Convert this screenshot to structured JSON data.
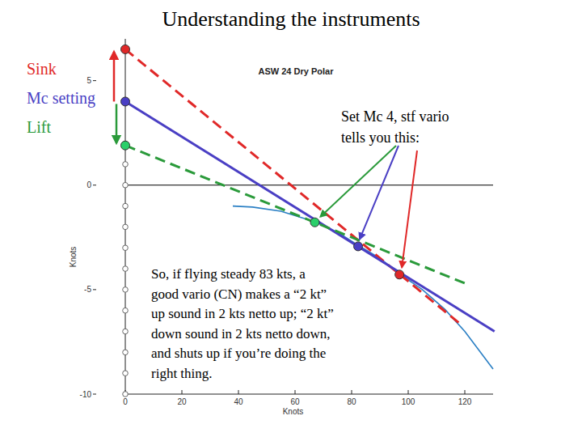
{
  "page": {
    "title": "Understanding the instruments",
    "labels": [
      {
        "text": "Sink",
        "color": "#e02828"
      },
      {
        "text": "Mc setting",
        "color": "#4a3fc4"
      },
      {
        "text": "Lift",
        "color": "#2a9a3a"
      }
    ],
    "note": [
      "Set Mc 4, stf vario",
      "tells you this:"
    ],
    "paragraph": [
      "So, if flying steady 83 kts, a",
      "good vario (CN) makes a “2 kt”",
      "up sound in 2 kts netto up; “2 kt”",
      "down sound in 2 kts netto down,",
      "and shuts up if you’re doing the",
      "right thing."
    ]
  },
  "chart_data": {
    "type": "line",
    "title": "ASW 24 Dry Polar",
    "x_label": "Knots",
    "y_label": "Knots",
    "xlim": [
      0,
      130
    ],
    "ylim": [
      -10,
      7
    ],
    "xticks": [
      0,
      20,
      40,
      60,
      80,
      100,
      120
    ],
    "yticks": [
      -10,
      -5,
      0,
      5
    ],
    "series": [
      {
        "type": "line",
        "color": "#000000",
        "line_style": "solid",
        "x": [
          0,
          130
        ],
        "values": [
          0,
          0
        ]
      },
      {
        "type": "line",
        "color": "#2a7fc4",
        "line_style": "solid",
        "x": [
          38,
          45,
          55,
          67,
          75,
          82,
          90,
          97,
          105,
          113,
          120,
          125,
          130
        ],
        "values": [
          -1.0,
          -1.05,
          -1.25,
          -1.75,
          -2.25,
          -2.85,
          -3.5,
          -4.25,
          -5.0,
          -5.95,
          -7.0,
          -7.9,
          -8.8
        ]
      },
      {
        "type": "line",
        "color": "#e02828",
        "line_style": "dashed",
        "x": [
          0,
          118
        ],
        "values": [
          6.5,
          -6.6
        ]
      },
      {
        "type": "line",
        "color": "#4a3fc4",
        "line_style": "solid",
        "x": [
          0,
          130.5
        ],
        "values": [
          4,
          -7.0
        ]
      },
      {
        "type": "line",
        "color": "#2a9a3a",
        "line_style": "dashed",
        "x": [
          0,
          121
        ],
        "values": [
          1.9,
          -4.75
        ]
      },
      {
        "type": "scatter",
        "color": "#ffffff",
        "marker": "circle-open",
        "x": [
          0,
          0,
          0,
          0,
          0,
          0,
          0,
          0,
          0,
          0,
          0,
          0
        ],
        "values": [
          -10,
          -9,
          -8,
          -7,
          -6,
          -5,
          -4,
          -3,
          -2,
          -1,
          0,
          1
        ]
      },
      {
        "type": "scatter",
        "color": "#e02828",
        "marker": "circle",
        "x": [
          0,
          96.9
        ],
        "values": [
          6.5,
          -4.28
        ]
      },
      {
        "type": "scatter",
        "color": "#4a3fc4",
        "marker": "circle",
        "x": [
          0,
          82.3
        ],
        "values": [
          4,
          -2.93
        ]
      },
      {
        "type": "scatter",
        "color": "#2acf6a",
        "marker": "circle",
        "x": [
          0,
          67
        ],
        "values": [
          1.9,
          -1.78
        ]
      }
    ]
  }
}
